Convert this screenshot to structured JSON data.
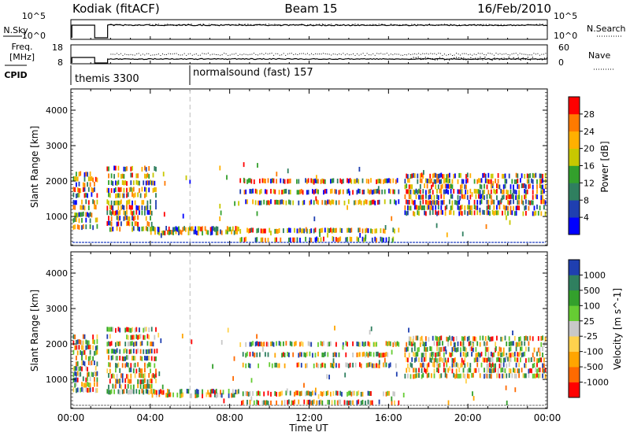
{
  "header": {
    "radar": "Kodiak (fitACF)",
    "beam": "Beam 15",
    "date": "16/Feb/2010"
  },
  "top_panels": {
    "nsky_label": "N.Sky",
    "nsky_ticks": [
      "10^5",
      "10^0"
    ],
    "nsearch_label": "N.Search",
    "nsearch_ticks": [
      "10^5",
      "10^0"
    ],
    "freq_label_1": "Freq.",
    "freq_label_2": "[MHz]",
    "freq_ticks": [
      "18",
      "8"
    ],
    "nave_label": "Nave",
    "nave_ticks": [
      "60",
      "0"
    ],
    "cpid_label": "CPID",
    "cpid_segments": [
      {
        "label": "themis 3300",
        "start_hour": 0.0
      },
      {
        "label": "normalsound (fast) 157",
        "start_hour": 6.0
      }
    ]
  },
  "chart_data": [
    {
      "type": "heatmap",
      "panel": "power",
      "xlabel": "",
      "ylabel": "Slant Range [km]",
      "xlim": [
        0,
        24
      ],
      "ylim": [
        180,
        4600
      ],
      "yticks": [
        1000,
        2000,
        3000,
        4000
      ],
      "colorbar": {
        "label": "Power [dB]",
        "tick_labels": [
          "4",
          "8",
          "12",
          "16",
          "20",
          "24",
          "28"
        ],
        "colors": [
          "#0000ff",
          "#1f3fb0",
          "#2f7f5f",
          "#33a02c",
          "#c8c800",
          "#ffb000",
          "#ff7a00",
          "#ff0000"
        ]
      },
      "scatter_bands_km": [
        {
          "from_hour": 0.1,
          "to_hour": 1.3,
          "ranges": [
            700,
            900,
            1050,
            1250,
            1400,
            1600,
            1750,
            1900,
            2050,
            2200
          ]
        },
        {
          "from_hour": 1.8,
          "to_hour": 4.3,
          "ranges": [
            650,
            800,
            950,
            1100,
            1250,
            1400,
            1600,
            1750,
            1950,
            2150,
            2350
          ]
        },
        {
          "from_hour": 4.0,
          "to_hour": 8.5,
          "ranges": [
            550,
            650
          ]
        },
        {
          "from_hour": 8.5,
          "to_hour": 16.5,
          "ranges": [
            350,
            600,
            1400,
            1700,
            2000
          ]
        },
        {
          "from_hour": 16.8,
          "to_hour": 23.9,
          "ranges": [
            1100,
            1250,
            1400,
            1550,
            1700,
            1850,
            2000,
            2150
          ]
        }
      ]
    },
    {
      "type": "heatmap",
      "panel": "velocity",
      "xlabel": "Time UT",
      "ylabel": "Slant Range [km]",
      "xlim": [
        0,
        24
      ],
      "ylim": [
        180,
        4600
      ],
      "yticks": [
        1000,
        2000,
        3000,
        4000
      ],
      "colorbar": {
        "label": "Velocity [m s^-1]",
        "tick_labels": [
          "1000",
          "500",
          "100",
          "25",
          "-25",
          "-100",
          "-500",
          "-1000"
        ],
        "colors": [
          "#1f3fb0",
          "#2f7f5f",
          "#33a02c",
          "#66cc33",
          "#c8c8c8",
          "#ffd24d",
          "#ffa500",
          "#ff6a00",
          "#ff0000"
        ]
      },
      "scatter_bands_km": [
        {
          "from_hour": 0.1,
          "to_hour": 1.3,
          "ranges": [
            700,
            850,
            1000,
            1150,
            1300,
            1450,
            1600,
            1750,
            1900,
            2050,
            2200
          ]
        },
        {
          "from_hour": 1.8,
          "to_hour": 4.3,
          "ranges": [
            650,
            800,
            950,
            1100,
            1250,
            1400,
            1600,
            1800,
            2000,
            2200,
            2400
          ]
        },
        {
          "from_hour": 4.0,
          "to_hour": 8.5,
          "ranges": [
            550,
            650
          ]
        },
        {
          "from_hour": 8.5,
          "to_hour": 16.5,
          "ranges": [
            350,
            600,
            1400,
            1700,
            2000
          ]
        },
        {
          "from_hour": 16.8,
          "to_hour": 23.9,
          "ranges": [
            1100,
            1250,
            1400,
            1550,
            1700,
            1850,
            2000,
            2150
          ]
        }
      ]
    }
  ],
  "x_tick_labels": [
    "00:00",
    "04:00",
    "08:00",
    "12:00",
    "16:00",
    "20:00",
    "00:00"
  ],
  "x_axis_label": "Time UT"
}
